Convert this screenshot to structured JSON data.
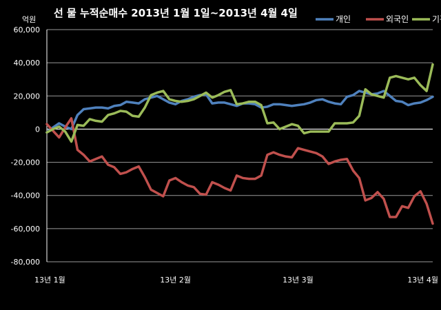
{
  "chart_data": {
    "type": "line",
    "title": "선 물 누적순매수 2013년 1월 1일~2013년 4월 4일",
    "unit": "억원",
    "ylim": [
      -80000,
      60000
    ],
    "yticks": [
      60000,
      40000,
      20000,
      0,
      -20000,
      -40000,
      -60000,
      -80000
    ],
    "ytick_labels": [
      "60,000",
      "40,000",
      "20,000",
      "0",
      "-20,000",
      "-40,000",
      "-60,000",
      "-80,000"
    ],
    "xlim": [
      0,
      63
    ],
    "xticks": [
      {
        "label": "13년 1월",
        "x": 0
      },
      {
        "label": "13년 2월",
        "x": 21
      },
      {
        "label": "13년 3월",
        "x": 41
      },
      {
        "label": "13년 4월",
        "x": 63
      }
    ],
    "grid": true,
    "legend_position": "top-right",
    "series": [
      {
        "name": "개인",
        "color": "#4f81bd",
        "values": [
          -2000,
          1000,
          3500,
          1500,
          0,
          8500,
          12000,
          12500,
          13000,
          13000,
          12500,
          14000,
          14500,
          16500,
          16000,
          15500,
          18000,
          19000,
          20000,
          18000,
          16000,
          15000,
          17000,
          18000,
          19500,
          20500,
          21000,
          15500,
          16000,
          16000,
          15000,
          14000,
          15500,
          15500,
          15000,
          13000,
          13500,
          15000,
          15000,
          14500,
          14000,
          14500,
          15000,
          16000,
          17500,
          18000,
          16500,
          15500,
          15000,
          19500,
          20500,
          23000,
          22000,
          21000,
          21500,
          23000,
          20000,
          17000,
          16500,
          14500,
          15500,
          16000,
          17500,
          19500
        ]
      },
      {
        "name": "외국인",
        "color": "#c0504d",
        "values": [
          3000,
          -1000,
          -5000,
          1000,
          6500,
          -12500,
          -15500,
          -19500,
          -18000,
          -16500,
          -21500,
          -23000,
          -27000,
          -26000,
          -24000,
          -22500,
          -29000,
          -36500,
          -38500,
          -40500,
          -31000,
          -29500,
          -32000,
          -34000,
          -35000,
          -39000,
          -39500,
          -32000,
          -33500,
          -35500,
          -37000,
          -28000,
          -29500,
          -30000,
          -30000,
          -28000,
          -15500,
          -14000,
          -15500,
          -16500,
          -17000,
          -11500,
          -12500,
          -13500,
          -14500,
          -16500,
          -21000,
          -19500,
          -18500,
          -18000,
          -25000,
          -29500,
          -43000,
          -41500,
          -38000,
          -42000,
          -53000,
          -53000,
          -46500,
          -47500,
          -40500,
          -37500,
          -45000,
          -57000
        ]
      },
      {
        "name": "기관",
        "color": "#9bbb59",
        "values": [
          -2000,
          0,
          1500,
          -1500,
          -7500,
          2500,
          2000,
          6000,
          5000,
          4500,
          8500,
          9500,
          11000,
          10500,
          8000,
          7500,
          13000,
          20500,
          22000,
          23000,
          18000,
          17000,
          16500,
          17000,
          18000,
          20000,
          22000,
          19000,
          20500,
          22500,
          23500,
          15000,
          15500,
          16500,
          16500,
          14500,
          3500,
          4000,
          0,
          1500,
          3000,
          2000,
          -2500,
          -1500,
          -1500,
          -1500,
          -1500,
          3500,
          3500,
          3500,
          4000,
          8000,
          24000,
          21000,
          20000,
          19000,
          31000,
          32000,
          31000,
          30000,
          31000,
          26500,
          23000,
          39000
        ]
      }
    ]
  }
}
